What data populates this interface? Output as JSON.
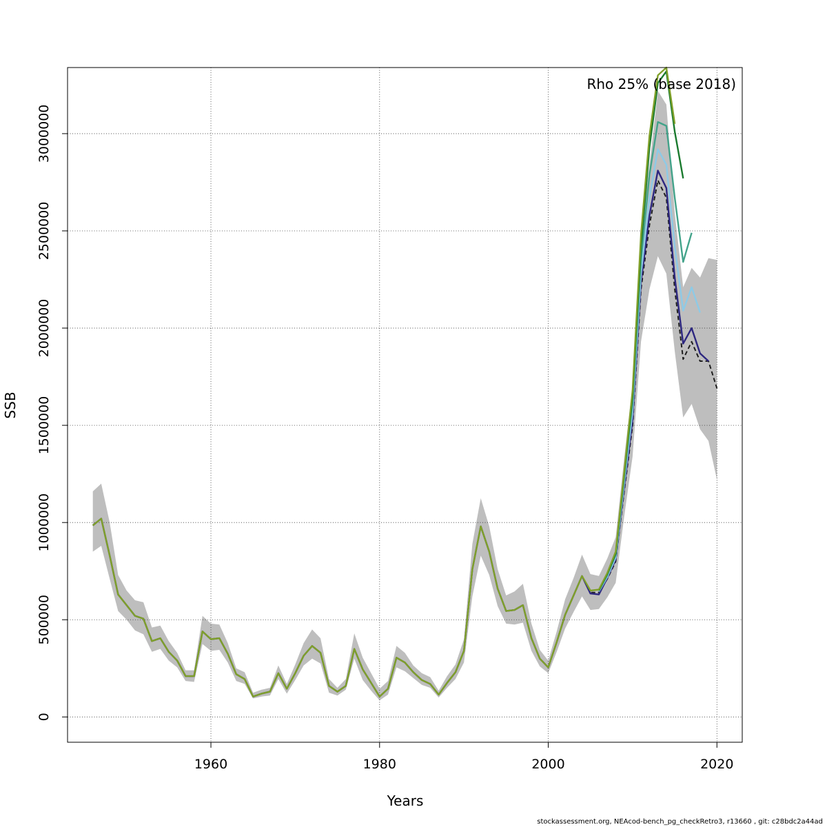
{
  "chart_data": {
    "type": "line",
    "xlabel": "Years",
    "ylabel": "SSB",
    "xlim": [
      1943,
      2023
    ],
    "ylim": [
      -130000,
      3340000
    ],
    "xticks": [
      1960,
      1980,
      2000,
      2020
    ],
    "yticks": [
      0,
      500000,
      1000000,
      1500000,
      2000000,
      2500000,
      3000000
    ],
    "grid": true,
    "annotation": "Rho 25% (base 2018)",
    "band": {
      "x": [
        1946,
        1947,
        1948,
        1949,
        1950,
        1951,
        1952,
        1953,
        1954,
        1955,
        1956,
        1957,
        1958,
        1959,
        1960,
        1961,
        1962,
        1963,
        1964,
        1965,
        1966,
        1967,
        1968,
        1969,
        1970,
        1971,
        1972,
        1973,
        1974,
        1975,
        1976,
        1977,
        1978,
        1979,
        1980,
        1981,
        1982,
        1983,
        1984,
        1985,
        1986,
        1987,
        1988,
        1989,
        1990,
        1991,
        1992,
        1993,
        1994,
        1995,
        1996,
        1997,
        1998,
        1999,
        2000,
        2001,
        2002,
        2003,
        2004,
        2005,
        2006,
        2007,
        2008,
        2009,
        2010,
        2011,
        2012,
        2013,
        2014,
        2015,
        2016,
        2017,
        2018,
        2019,
        2020
      ],
      "lower": [
        850000,
        880000,
        710000,
        545000,
        500000,
        445000,
        425000,
        335000,
        350000,
        290000,
        255000,
        185000,
        180000,
        375000,
        340000,
        345000,
        280000,
        185000,
        170000,
        95000,
        105000,
        110000,
        195000,
        120000,
        190000,
        265000,
        300000,
        275000,
        125000,
        110000,
        140000,
        300000,
        190000,
        135000,
        85000,
        115000,
        255000,
        235000,
        200000,
        165000,
        150000,
        100000,
        150000,
        195000,
        280000,
        620000,
        830000,
        730000,
        570000,
        480000,
        475000,
        485000,
        340000,
        260000,
        225000,
        335000,
        455000,
        540000,
        620000,
        550000,
        555000,
        615000,
        690000,
        1030000,
        1340000,
        1930000,
        2200000,
        2370000,
        2280000,
        1880000,
        1540000,
        1610000,
        1480000,
        1420000,
        1220000
      ],
      "upper": [
        1160000,
        1200000,
        1000000,
        730000,
        650000,
        600000,
        590000,
        460000,
        470000,
        390000,
        330000,
        240000,
        240000,
        520000,
        480000,
        475000,
        380000,
        250000,
        230000,
        125000,
        140000,
        150000,
        265000,
        170000,
        270000,
        380000,
        450000,
        405000,
        195000,
        150000,
        195000,
        430000,
        305000,
        225000,
        145000,
        185000,
        365000,
        330000,
        265000,
        225000,
        205000,
        135000,
        210000,
        270000,
        400000,
        890000,
        1125000,
        980000,
        760000,
        625000,
        645000,
        685000,
        480000,
        345000,
        290000,
        440000,
        605000,
        715000,
        835000,
        735000,
        725000,
        815000,
        925000,
        1330000,
        1710000,
        2480000,
        2840000,
        3220000,
        3150000,
        2590000,
        2210000,
        2310000,
        2260000,
        2360000,
        2350000
      ]
    },
    "series": [
      {
        "color": "#1f1f1f",
        "dashed": true,
        "x": [
          1946,
          1947,
          1948,
          1949,
          1950,
          1951,
          1952,
          1953,
          1954,
          1955,
          1956,
          1957,
          1958,
          1959,
          1960,
          1961,
          1962,
          1963,
          1964,
          1965,
          1966,
          1967,
          1968,
          1969,
          1970,
          1971,
          1972,
          1973,
          1974,
          1975,
          1976,
          1977,
          1978,
          1979,
          1980,
          1981,
          1982,
          1983,
          1984,
          1985,
          1986,
          1987,
          1988,
          1989,
          1990,
          1991,
          1992,
          1993,
          1994,
          1995,
          1996,
          1997,
          1998,
          1999,
          2000,
          2001,
          2002,
          2003,
          2004,
          2005,
          2006,
          2007,
          2008,
          2009,
          2010,
          2011,
          2012,
          2013,
          2014,
          2015,
          2016,
          2017,
          2018,
          2019,
          2020
        ],
        "y": [
          985000,
          1020000,
          830000,
          630000,
          575000,
          520000,
          505000,
          390000,
          405000,
          335000,
          290000,
          210000,
          210000,
          440000,
          400000,
          405000,
          325000,
          220000,
          195000,
          105000,
          120000,
          130000,
          225000,
          145000,
          225000,
          315000,
          365000,
          330000,
          160000,
          130000,
          160000,
          350000,
          245000,
          175000,
          105000,
          145000,
          305000,
          280000,
          230000,
          190000,
          170000,
          115000,
          175000,
          230000,
          340000,
          760000,
          980000,
          850000,
          660000,
          545000,
          550000,
          575000,
          405000,
          300000,
          255000,
          385000,
          525000,
          625000,
          725000,
          640000,
          640000,
          710000,
          800000,
          1160000,
          1500000,
          2200000,
          2530000,
          2760000,
          2670000,
          2200000,
          1840000,
          1930000,
          1830000,
          1830000,
          1690000
        ]
      },
      {
        "color": "#2d2780",
        "dashed": false,
        "x": [
          1946,
          1947,
          1948,
          1949,
          1950,
          1951,
          1952,
          1953,
          1954,
          1955,
          1956,
          1957,
          1958,
          1959,
          1960,
          1961,
          1962,
          1963,
          1964,
          1965,
          1966,
          1967,
          1968,
          1969,
          1970,
          1971,
          1972,
          1973,
          1974,
          1975,
          1976,
          1977,
          1978,
          1979,
          1980,
          1981,
          1982,
          1983,
          1984,
          1985,
          1986,
          1987,
          1988,
          1989,
          1990,
          1991,
          1992,
          1993,
          1994,
          1995,
          1996,
          1997,
          1998,
          1999,
          2000,
          2001,
          2002,
          2003,
          2004,
          2005,
          2006,
          2007,
          2008,
          2009,
          2010,
          2011,
          2012,
          2013,
          2014,
          2015,
          2016,
          2017,
          2018,
          2019
        ],
        "y": [
          985000,
          1020000,
          830000,
          630000,
          575000,
          520000,
          505000,
          390000,
          405000,
          335000,
          290000,
          210000,
          210000,
          440000,
          400000,
          405000,
          325000,
          220000,
          195000,
          105000,
          120000,
          130000,
          225000,
          145000,
          225000,
          315000,
          365000,
          330000,
          160000,
          130000,
          160000,
          350000,
          245000,
          175000,
          105000,
          145000,
          305000,
          280000,
          230000,
          190000,
          170000,
          115000,
          175000,
          230000,
          340000,
          760000,
          980000,
          850000,
          660000,
          545000,
          550000,
          575000,
          405000,
          300000,
          255000,
          385000,
          525000,
          625000,
          725000,
          635000,
          630000,
          715000,
          810000,
          1180000,
          1530000,
          2240000,
          2580000,
          2810000,
          2720000,
          2260000,
          1920000,
          2000000,
          1870000,
          1830000
        ]
      },
      {
        "color": "#8ecae6",
        "dashed": false,
        "x": [
          2006,
          2007,
          2008,
          2009,
          2010,
          2011,
          2012,
          2013,
          2014,
          2015,
          2016,
          2017,
          2018
        ],
        "y": [
          645000,
          720000,
          820000,
          1200000,
          1570000,
          2280000,
          2670000,
          2920000,
          2840000,
          2420000,
          2090000,
          2210000,
          2080000
        ]
      },
      {
        "color": "#43a38a",
        "dashed": false,
        "x": [
          2006,
          2007,
          2008,
          2009,
          2010,
          2011,
          2012,
          2013,
          2014,
          2015,
          2016,
          2017
        ],
        "y": [
          650000,
          730000,
          835000,
          1230000,
          1620000,
          2350000,
          2790000,
          3060000,
          3040000,
          2670000,
          2340000,
          2490000
        ]
      },
      {
        "color": "#1a7a2e",
        "dashed": false,
        "x": [
          2006,
          2007,
          2008,
          2009,
          2010,
          2011,
          2012,
          2013,
          2014,
          2015,
          2016
        ],
        "y": [
          650000,
          735000,
          840000,
          1245000,
          1650000,
          2420000,
          2930000,
          3260000,
          3320000,
          3010000,
          2770000
        ]
      },
      {
        "color": "#7fa02a",
        "dashed": false,
        "x": [
          1946,
          1947,
          1948,
          1949,
          1950,
          1951,
          1952,
          1953,
          1954,
          1955,
          1956,
          1957,
          1958,
          1959,
          1960,
          1961,
          1962,
          1963,
          1964,
          1965,
          1966,
          1967,
          1968,
          1969,
          1970,
          1971,
          1972,
          1973,
          1974,
          1975,
          1976,
          1977,
          1978,
          1979,
          1980,
          1981,
          1982,
          1983,
          1984,
          1985,
          1986,
          1987,
          1988,
          1989,
          1990,
          1991,
          1992,
          1993,
          1994,
          1995,
          1996,
          1997,
          1998,
          1999,
          2000,
          2001,
          2002,
          2003,
          2004,
          2005,
          2006,
          2007,
          2008,
          2009,
          2010,
          2011,
          2012,
          2013,
          2014,
          2015
        ],
        "y": [
          985000,
          1020000,
          830000,
          630000,
          575000,
          520000,
          505000,
          390000,
          405000,
          335000,
          290000,
          210000,
          210000,
          440000,
          400000,
          405000,
          325000,
          220000,
          195000,
          105000,
          120000,
          130000,
          225000,
          145000,
          225000,
          315000,
          365000,
          330000,
          160000,
          130000,
          160000,
          350000,
          245000,
          175000,
          105000,
          145000,
          305000,
          280000,
          230000,
          190000,
          170000,
          115000,
          175000,
          230000,
          340000,
          760000,
          980000,
          850000,
          660000,
          545000,
          550000,
          575000,
          405000,
          300000,
          255000,
          385000,
          525000,
          625000,
          725000,
          650000,
          655000,
          740000,
          850000,
          1260000,
          1680000,
          2480000,
          2990000,
          3300000,
          3340000,
          3050000
        ]
      }
    ]
  },
  "footer": "stockassessment.org, NEAcod-bench_pg_checkRetro3, r13660 , git: c28bdc2a44ad"
}
